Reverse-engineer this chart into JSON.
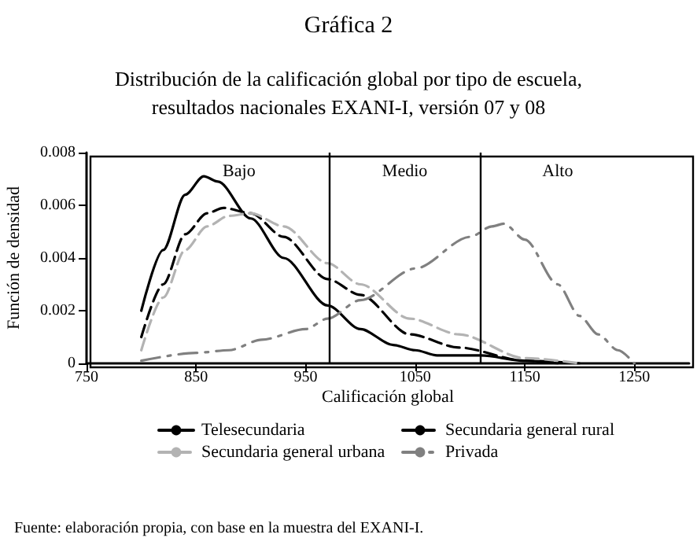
{
  "chart_data": {
    "type": "line",
    "title": "Gráfica 2",
    "subtitle": "Distribución de la calificación global por tipo de escuela,\nresultados nacionales EXANI-I, versión 07 y 08",
    "xlabel": "Calificación global",
    "ylabel": "Función de densidad",
    "xlim": [
      750,
      1300
    ],
    "xticks": [
      750,
      850,
      950,
      1050,
      1150,
      1250
    ],
    "ylim": [
      0,
      0.008
    ],
    "yticks": [
      0,
      0.002,
      0.004,
      0.006,
      0.008
    ],
    "grid": false,
    "legend": "bottom",
    "marker": "none",
    "series": [
      {
        "name": "Telesecundaria",
        "color": "#000000",
        "line_style": "solid",
        "x": [
          800,
          820,
          840,
          857,
          870,
          900,
          930,
          970,
          1000,
          1030,
          1050,
          1070,
          1110,
          1150,
          1180
        ],
        "values": [
          0.002,
          0.0043,
          0.0064,
          0.0071,
          0.0069,
          0.0055,
          0.004,
          0.0022,
          0.0013,
          0.0007,
          0.0005,
          0.0003,
          0.0003,
          0.0001,
          0
        ]
      },
      {
        "name": "Secundaria general rural",
        "color": "#000000",
        "line_style": "dashed",
        "x": [
          800,
          820,
          840,
          860,
          875,
          900,
          930,
          970,
          1000,
          1045,
          1090,
          1150,
          1200
        ],
        "values": [
          0.001,
          0.003,
          0.0049,
          0.0057,
          0.0059,
          0.0057,
          0.0048,
          0.0032,
          0.0026,
          0.0011,
          0.0006,
          0.0001,
          0
        ]
      },
      {
        "name": "Secundaria general urbana",
        "color": "#b3b3b3",
        "line_style": "dashed",
        "x": [
          800,
          820,
          840,
          860,
          880,
          900,
          930,
          970,
          1000,
          1045,
          1090,
          1150,
          1200
        ],
        "values": [
          0.0005,
          0.0025,
          0.0043,
          0.0052,
          0.0056,
          0.0057,
          0.0052,
          0.0038,
          0.003,
          0.0017,
          0.0011,
          0.0002,
          0
        ]
      },
      {
        "name": "Privada",
        "color": "#808080",
        "line_style": "dashdot",
        "x": [
          800,
          850,
          880,
          910,
          950,
          970,
          1000,
          1050,
          1100,
          1120,
          1131,
          1150,
          1180,
          1200,
          1217,
          1235,
          1250
        ],
        "values": [
          0.0001,
          0.0004,
          0.0005,
          0.0009,
          0.0013,
          0.0017,
          0.0024,
          0.0036,
          0.0048,
          0.0052,
          0.0053,
          0.0047,
          0.003,
          0.0018,
          0.0011,
          0.0005,
          0
        ]
      }
    ],
    "ref_lines": [
      {
        "axis": "x",
        "value": 971,
        "color": "#000000"
      },
      {
        "axis": "x",
        "value": 1110,
        "color": "#000000"
      }
    ],
    "annotations": [
      "Bajo",
      "Medio",
      "Alto",
      "Fuente: elaboración propia, con base en la muestra del EXANI-I."
    ]
  }
}
